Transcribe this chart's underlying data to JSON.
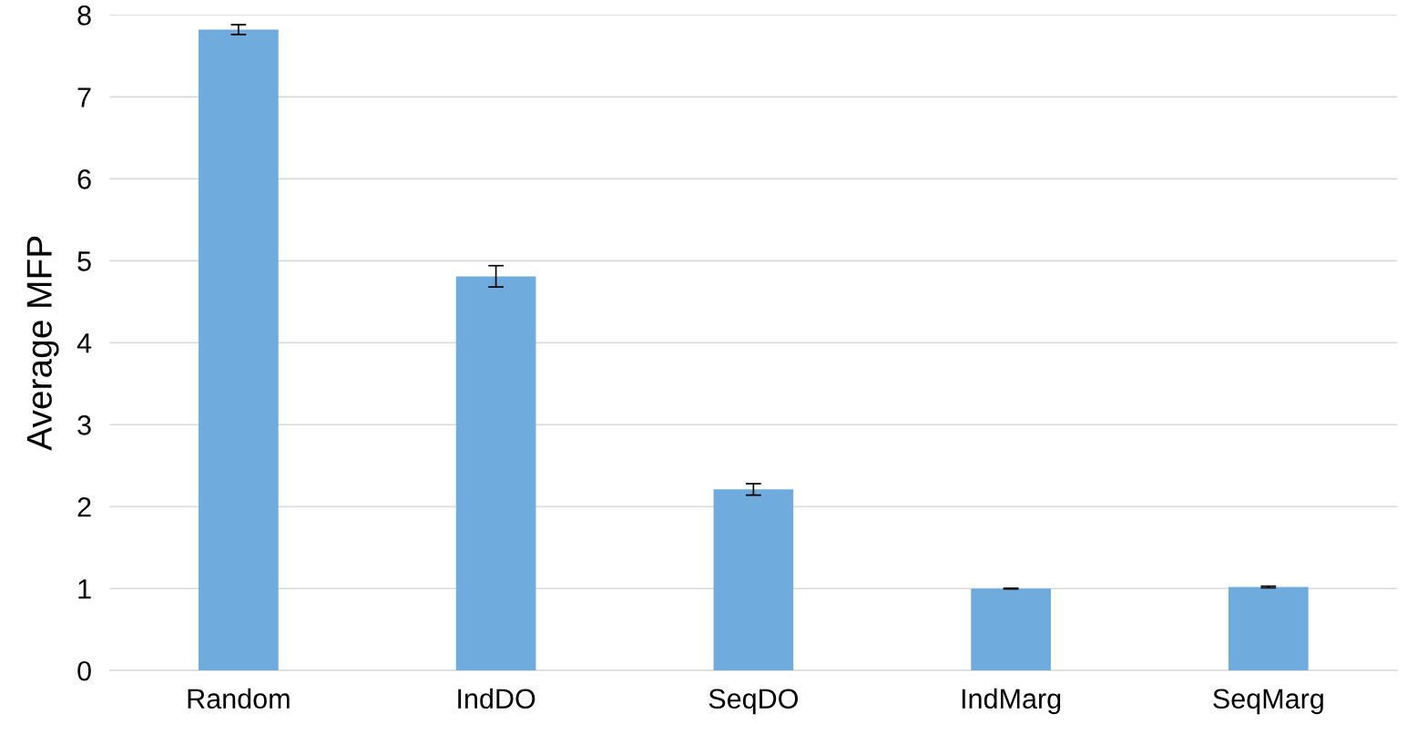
{
  "chart_data": {
    "type": "bar",
    "ylabel": "Average MFP",
    "categories": [
      "Random",
      "IndDO",
      "SeqDO",
      "IndMarg",
      "SeqMarg"
    ],
    "values": [
      7.82,
      4.81,
      2.21,
      1.0,
      1.02
    ],
    "errors": [
      0.06,
      0.13,
      0.07,
      0.005,
      0.01
    ],
    "color": "#6fabdc",
    "ylim": [
      0,
      8
    ],
    "yticks": [
      0,
      1,
      2,
      3,
      4,
      5,
      6,
      7,
      8
    ],
    "grid": "y"
  }
}
